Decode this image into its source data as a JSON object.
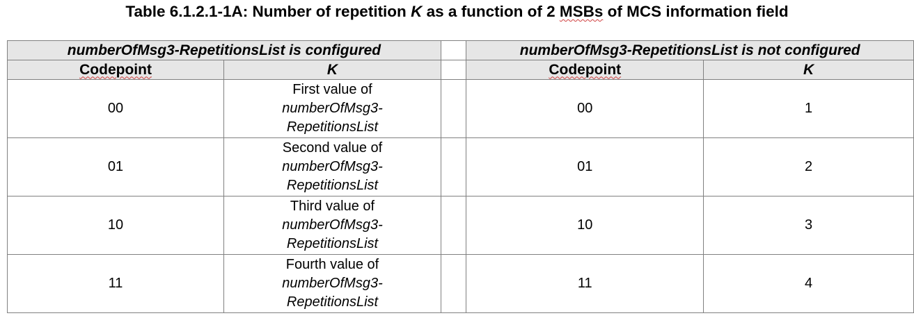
{
  "caption": {
    "prefix": "Table 6.1.2.1-1A: Number of repetition ",
    "k": "K",
    "middle": " as a function of 2 ",
    "msbs": "MSBs",
    "suffix": " of MCS information field"
  },
  "table": {
    "group_left": "numberOfMsg3-RepetitionsList is configured",
    "group_right": "numberOfMsg3-RepetitionsList is not configured",
    "col_codepoint": "Codepoint",
    "col_k": "K",
    "rows": [
      {
        "codepoint_left": "00",
        "k_left_line1": "First value of",
        "k_left_line2": "numberOfMsg3-",
        "k_left_line3": "RepetitionsList",
        "codepoint_right": "00",
        "k_right": "1"
      },
      {
        "codepoint_left": "01",
        "k_left_line1": "Second value of",
        "k_left_line2": "numberOfMsg3-",
        "k_left_line3": "RepetitionsList",
        "codepoint_right": "01",
        "k_right": "2"
      },
      {
        "codepoint_left": "10",
        "k_left_line1": "Third value of",
        "k_left_line2": "numberOfMsg3-",
        "k_left_line3": "RepetitionsList",
        "codepoint_right": "10",
        "k_right": "3"
      },
      {
        "codepoint_left": "11",
        "k_left_line1": "Fourth value of",
        "k_left_line2": "numberOfMsg3-",
        "k_left_line3": "RepetitionsList",
        "codepoint_right": "11",
        "k_right": "4"
      }
    ]
  }
}
